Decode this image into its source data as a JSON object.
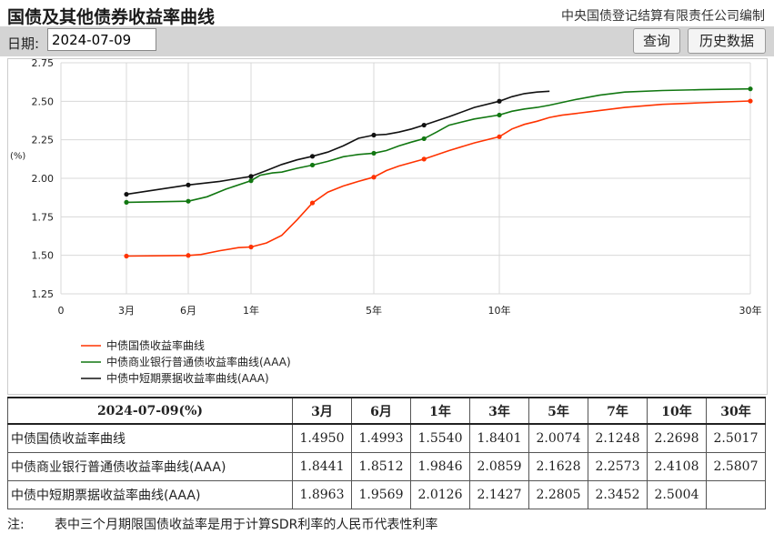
{
  "header": {
    "title": "国债及其他债券收益率曲线",
    "publisher": "中央国债登记结算有限责任公司编制"
  },
  "toolbar": {
    "date_label": "日期:",
    "date_value": "2024-07-09",
    "query_label": "查询",
    "history_label": "历史数据"
  },
  "chart_data": {
    "type": "line",
    "title": "",
    "xlabel": "",
    "ylabel": "(%)",
    "xlim": [
      0,
      30
    ],
    "ylim": [
      1.25,
      2.75
    ],
    "yticks": [
      "1.25",
      "1.50",
      "1.75",
      "2.00",
      "2.25",
      "2.50",
      "2.75"
    ],
    "xticks": [
      {
        "x": 0,
        "label": "0"
      },
      {
        "x": 0.25,
        "label": "3月"
      },
      {
        "x": 0.5,
        "label": "6月"
      },
      {
        "x": 1,
        "label": "1年"
      },
      {
        "x": 5,
        "label": "5年"
      },
      {
        "x": 10,
        "label": "10年"
      },
      {
        "x": 30,
        "label": "30年"
      }
    ],
    "grid": true,
    "legend_position": "bottom-left",
    "series": [
      {
        "name": "中债国债收益率曲线",
        "color": "#ff3300",
        "markers": [
          [
            0.25,
            1.495
          ],
          [
            0.5,
            1.4993
          ],
          [
            1,
            1.554
          ],
          [
            3,
            1.8401
          ],
          [
            5,
            2.0074
          ],
          [
            7,
            2.1248
          ],
          [
            10,
            2.2698
          ],
          [
            30,
            2.5017
          ]
        ],
        "curve": [
          [
            0.25,
            1.495
          ],
          [
            0.5,
            1.4993
          ],
          [
            0.6,
            1.505
          ],
          [
            0.75,
            1.53
          ],
          [
            0.9,
            1.55
          ],
          [
            1,
            1.554
          ],
          [
            1.5,
            1.58
          ],
          [
            2,
            1.63
          ],
          [
            2.5,
            1.73
          ],
          [
            3,
            1.8401
          ],
          [
            3.5,
            1.91
          ],
          [
            4,
            1.95
          ],
          [
            4.5,
            1.98
          ],
          [
            5,
            2.0074
          ],
          [
            5.5,
            2.05
          ],
          [
            6,
            2.08
          ],
          [
            7,
            2.1248
          ],
          [
            8,
            2.18
          ],
          [
            9,
            2.23
          ],
          [
            10,
            2.2698
          ],
          [
            11,
            2.32
          ],
          [
            12,
            2.35
          ],
          [
            13,
            2.37
          ],
          [
            14,
            2.395
          ],
          [
            15,
            2.41
          ],
          [
            17,
            2.43
          ],
          [
            20,
            2.46
          ],
          [
            23,
            2.48
          ],
          [
            26,
            2.49
          ],
          [
            30,
            2.5017
          ]
        ]
      },
      {
        "name": "中债商业银行普通债收益率曲线(AAA)",
        "color": "#117711",
        "markers": [
          [
            0.25,
            1.8441
          ],
          [
            0.5,
            1.8512
          ],
          [
            1,
            1.9846
          ],
          [
            3,
            2.0859
          ],
          [
            5,
            2.1628
          ],
          [
            7,
            2.2573
          ],
          [
            10,
            2.4108
          ],
          [
            30,
            2.5807
          ]
        ],
        "curve": [
          [
            0.25,
            1.8441
          ],
          [
            0.5,
            1.8512
          ],
          [
            0.65,
            1.88
          ],
          [
            0.8,
            1.93
          ],
          [
            1,
            1.9846
          ],
          [
            1.3,
            2.02
          ],
          [
            1.7,
            2.035
          ],
          [
            2,
            2.04
          ],
          [
            2.5,
            2.065
          ],
          [
            3,
            2.0859
          ],
          [
            3.5,
            2.11
          ],
          [
            4,
            2.14
          ],
          [
            4.5,
            2.155
          ],
          [
            5,
            2.1628
          ],
          [
            5.5,
            2.18
          ],
          [
            6,
            2.21
          ],
          [
            6.5,
            2.235
          ],
          [
            7,
            2.2573
          ],
          [
            7.5,
            2.3
          ],
          [
            8,
            2.345
          ],
          [
            9,
            2.385
          ],
          [
            10,
            2.4108
          ],
          [
            11,
            2.435
          ],
          [
            12,
            2.45
          ],
          [
            13,
            2.46
          ],
          [
            14,
            2.475
          ],
          [
            16,
            2.51
          ],
          [
            18,
            2.54
          ],
          [
            20,
            2.56
          ],
          [
            23,
            2.57
          ],
          [
            26,
            2.575
          ],
          [
            30,
            2.5807
          ]
        ]
      },
      {
        "name": "中债中短期票据收益率曲线(AAA)",
        "color": "#111111",
        "markers": [
          [
            0.25,
            1.8963
          ],
          [
            0.5,
            1.9569
          ],
          [
            1,
            2.0126
          ],
          [
            3,
            2.1427
          ],
          [
            5,
            2.2805
          ],
          [
            7,
            2.3452
          ],
          [
            10,
            2.5004
          ]
        ],
        "curve": [
          [
            0.25,
            1.8963
          ],
          [
            0.5,
            1.9569
          ],
          [
            0.75,
            1.98
          ],
          [
            1,
            2.0126
          ],
          [
            1.5,
            2.05
          ],
          [
            2,
            2.09
          ],
          [
            2.5,
            2.12
          ],
          [
            3,
            2.1427
          ],
          [
            3.5,
            2.17
          ],
          [
            4,
            2.21
          ],
          [
            4.5,
            2.26
          ],
          [
            5,
            2.2805
          ],
          [
            5.5,
            2.285
          ],
          [
            6,
            2.3
          ],
          [
            6.5,
            2.32
          ],
          [
            7,
            2.3452
          ],
          [
            8,
            2.4
          ],
          [
            9,
            2.46
          ],
          [
            10,
            2.5004
          ],
          [
            11,
            2.53
          ],
          [
            12,
            2.55
          ],
          [
            13,
            2.56
          ],
          [
            14,
            2.565
          ]
        ]
      }
    ]
  },
  "table": {
    "corner": "2024-07-09(%)",
    "columns": [
      "3月",
      "6月",
      "1年",
      "3年",
      "5年",
      "7年",
      "10年",
      "30年"
    ],
    "rows": [
      {
        "name": "中债国债收益率曲线",
        "values": [
          "1.4950",
          "1.4993",
          "1.5540",
          "1.8401",
          "2.0074",
          "2.1248",
          "2.2698",
          "2.5017"
        ]
      },
      {
        "name": "中债商业银行普通债收益率曲线(AAA)",
        "values": [
          "1.8441",
          "1.8512",
          "1.9846",
          "2.0859",
          "2.1628",
          "2.2573",
          "2.4108",
          "2.5807"
        ]
      },
      {
        "name": "中债中短期票据收益率曲线(AAA)",
        "values": [
          "1.8963",
          "1.9569",
          "2.0126",
          "2.1427",
          "2.2805",
          "2.3452",
          "2.5004",
          ""
        ]
      }
    ]
  },
  "note": {
    "label": "注:",
    "text": "表中三个月期限国债收益率是用于计算SDR利率的人民币代表性利率"
  }
}
